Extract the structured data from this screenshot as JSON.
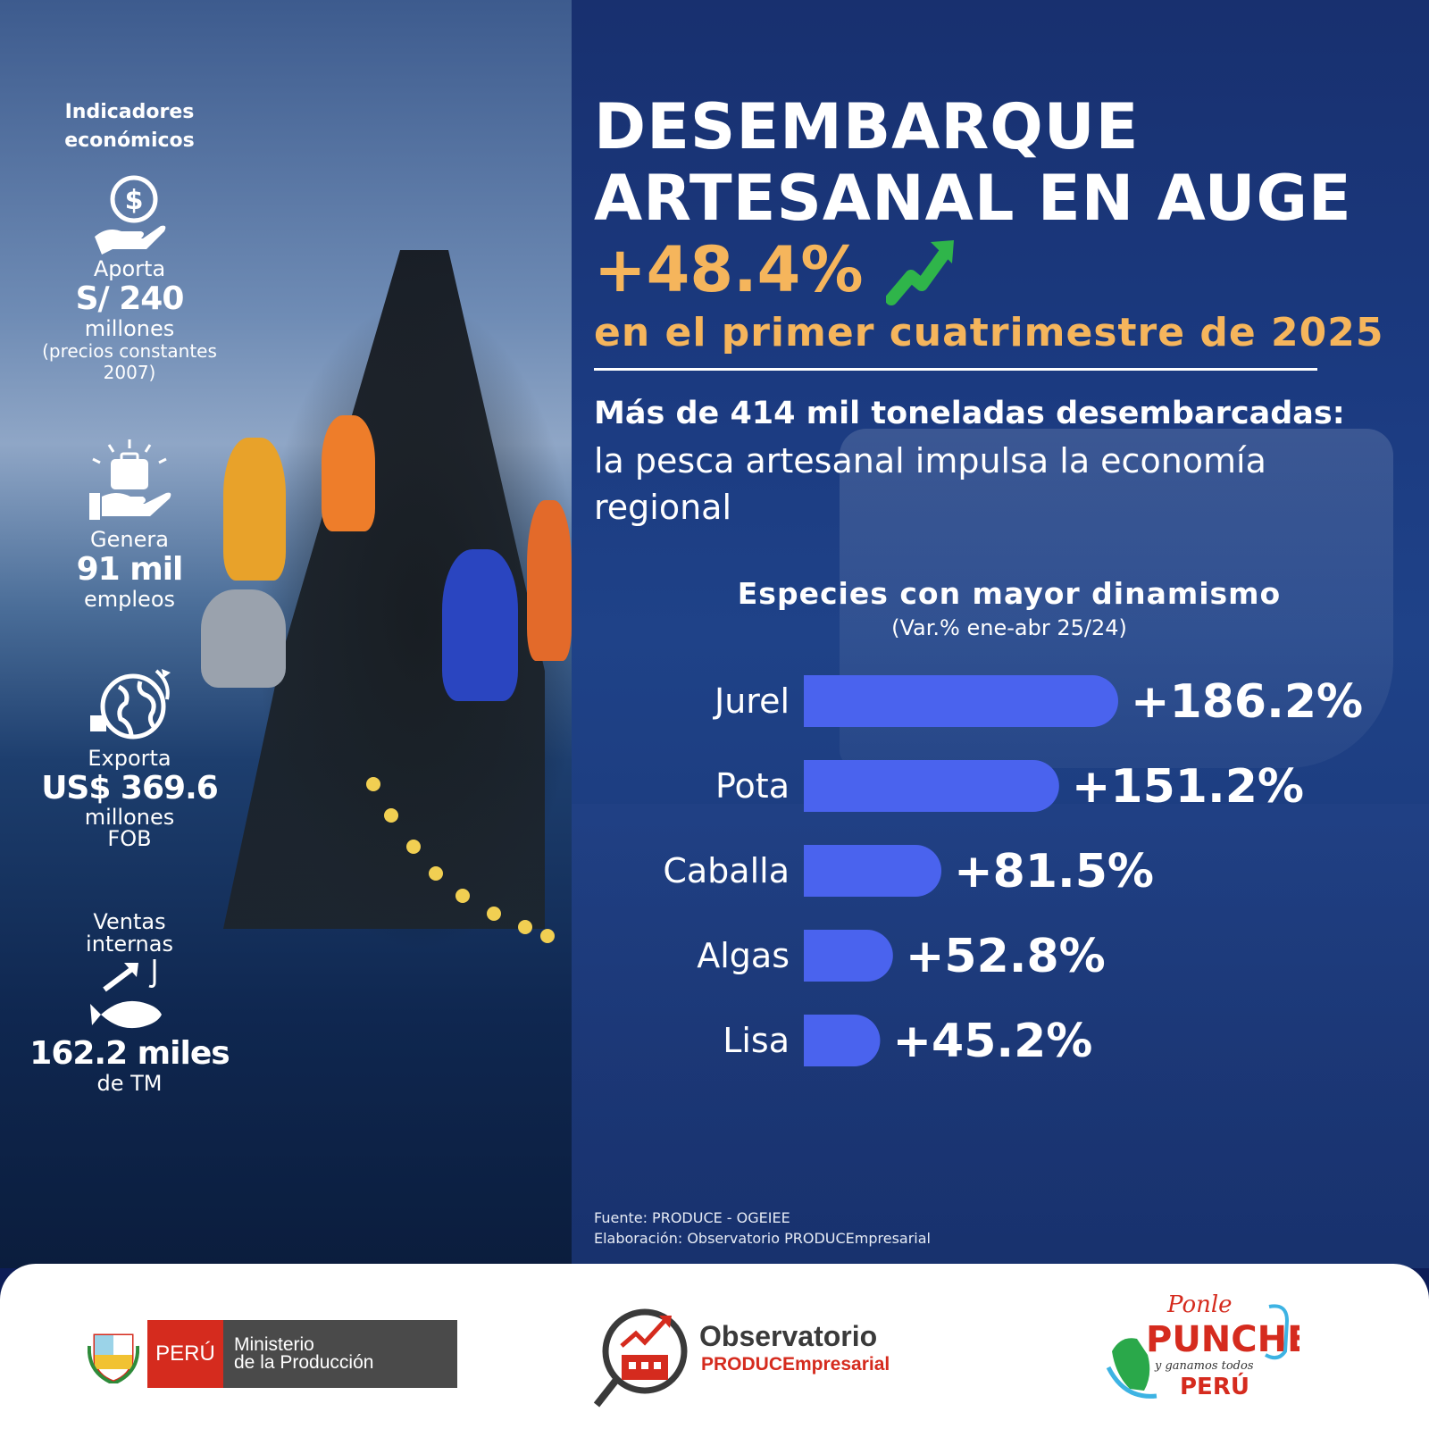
{
  "indicators": {
    "title": "Indicadores económicos",
    "aporta": {
      "label": "Aporta",
      "value": "S/ 240",
      "unit": "millones",
      "note": "(precios constantes 2007)"
    },
    "genera": {
      "label": "Genera",
      "value": "91 mil",
      "unit": "empleos"
    },
    "exporta": {
      "label": "Exporta",
      "value": "US$ 369.6",
      "unit": "millones",
      "note": "FOB"
    },
    "ventas": {
      "label": "Ventas internas",
      "value": "162.2 miles",
      "unit": "de TM"
    }
  },
  "headline": {
    "line1": "DESEMBARQUE",
    "line2": "ARTESANAL EN AUGE",
    "growth": "+48.4%",
    "period": "en el primer cuatrimestre de 2025",
    "sub_bold": "Más de 414 mil toneladas desembarcadas:",
    "sub_text": "la pesca artesanal impulsa la economía regional"
  },
  "chart_data": {
    "type": "bar",
    "orientation": "horizontal",
    "title": "Especies con mayor dinamismo",
    "subtitle": "(Var.% ene-abr 25/24)",
    "categories": [
      "Jurel",
      "Pota",
      "Caballa",
      "Algas",
      "Lisa"
    ],
    "values": [
      186.2,
      151.2,
      81.5,
      52.8,
      45.2
    ],
    "labels": [
      "+186.2%",
      "+151.2%",
      "+81.5%",
      "+52.8%",
      "+45.2%"
    ],
    "bar_color": "#4a63ee",
    "xlim": [
      0,
      186.2
    ],
    "grid": false
  },
  "source": {
    "fuente": "Fuente: PRODUCE - OGEIEE",
    "elaboracion": "Elaboración: Observatorio PRODUCEmpresarial"
  },
  "footer": {
    "peru": "PERÚ",
    "ministerio_line1": "Ministerio",
    "ministerio_line2": "de la Producción",
    "observatorio": "Observatorio",
    "observatorio_sub": "PRODUCEmpresarial",
    "punche_line1": "Ponle",
    "punche_line2": "PUNCHE",
    "punche_line3": "y ganamos todos",
    "punche_line4": "PERÚ"
  },
  "colors": {
    "accent": "#f5b55c",
    "bar": "#4a63ee",
    "background": "#1b3a80",
    "brand_red": "#d52b1e"
  }
}
